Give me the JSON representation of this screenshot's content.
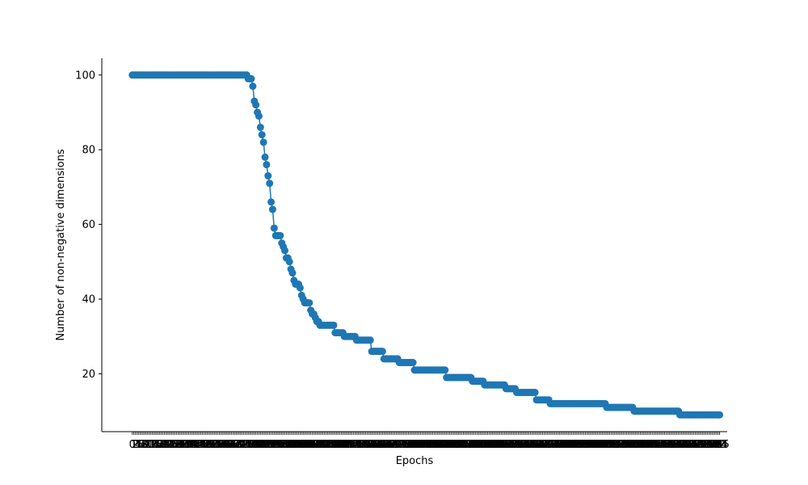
{
  "chart_data": {
    "type": "line",
    "title": "",
    "xlabel": "Epochs",
    "ylabel": "Number of non-negative dimensions",
    "ylim": [
      4.5,
      104.5
    ],
    "yticks": [
      20,
      40,
      60,
      80,
      100
    ],
    "xlim": [
      -20,
      390
    ],
    "grid": false,
    "legend": "none",
    "marker": "circle",
    "color": "#1f77b4",
    "series": [
      {
        "segments": [
          {
            "from": 0,
            "to": 75,
            "value": 100
          },
          {
            "from": 76,
            "to": 78,
            "value": 99
          },
          {
            "from": 79,
            "to": 79,
            "value": 97
          },
          {
            "from": 80,
            "to": 80,
            "value": 93
          },
          {
            "from": 81,
            "to": 81,
            "value": 92
          },
          {
            "from": 82,
            "to": 82,
            "value": 90
          },
          {
            "from": 83,
            "to": 83,
            "value": 89
          },
          {
            "from": 84,
            "to": 84,
            "value": 86
          },
          {
            "from": 85,
            "to": 85,
            "value": 84
          },
          {
            "from": 86,
            "to": 86,
            "value": 82
          },
          {
            "from": 87,
            "to": 87,
            "value": 78
          },
          {
            "from": 88,
            "to": 88,
            "value": 76
          },
          {
            "from": 89,
            "to": 89,
            "value": 73
          },
          {
            "from": 90,
            "to": 90,
            "value": 71
          },
          {
            "from": 91,
            "to": 91,
            "value": 66
          },
          {
            "from": 92,
            "to": 92,
            "value": 64
          },
          {
            "from": 93,
            "to": 93,
            "value": 59
          },
          {
            "from": 94,
            "to": 97,
            "value": 57
          },
          {
            "from": 98,
            "to": 98,
            "value": 55
          },
          {
            "from": 99,
            "to": 99,
            "value": 54
          },
          {
            "from": 100,
            "to": 100,
            "value": 53
          },
          {
            "from": 101,
            "to": 102,
            "value": 51
          },
          {
            "from": 103,
            "to": 103,
            "value": 50
          },
          {
            "from": 104,
            "to": 104,
            "value": 48
          },
          {
            "from": 105,
            "to": 105,
            "value": 47
          },
          {
            "from": 106,
            "to": 106,
            "value": 45
          },
          {
            "from": 107,
            "to": 109,
            "value": 44
          },
          {
            "from": 110,
            "to": 110,
            "value": 43
          },
          {
            "from": 111,
            "to": 111,
            "value": 41
          },
          {
            "from": 112,
            "to": 112,
            "value": 40
          },
          {
            "from": 113,
            "to": 116,
            "value": 39
          },
          {
            "from": 117,
            "to": 117,
            "value": 37
          },
          {
            "from": 118,
            "to": 119,
            "value": 36
          },
          {
            "from": 120,
            "to": 120,
            "value": 35
          },
          {
            "from": 121,
            "to": 122,
            "value": 34
          },
          {
            "from": 123,
            "to": 132,
            "value": 33
          },
          {
            "from": 133,
            "to": 138,
            "value": 31
          },
          {
            "from": 139,
            "to": 146,
            "value": 30
          },
          {
            "from": 147,
            "to": 156,
            "value": 29
          },
          {
            "from": 157,
            "to": 164,
            "value": 26
          },
          {
            "from": 165,
            "to": 174,
            "value": 24
          },
          {
            "from": 175,
            "to": 184,
            "value": 23
          },
          {
            "from": 185,
            "to": 205,
            "value": 21
          },
          {
            "from": 206,
            "to": 222,
            "value": 19
          },
          {
            "from": 223,
            "to": 230,
            "value": 18
          },
          {
            "from": 231,
            "to": 244,
            "value": 17
          },
          {
            "from": 245,
            "to": 251,
            "value": 16
          },
          {
            "from": 252,
            "to": 264,
            "value": 15
          },
          {
            "from": 265,
            "to": 273,
            "value": 13
          },
          {
            "from": 274,
            "to": 310,
            "value": 12
          },
          {
            "from": 311,
            "to": 328,
            "value": 11
          },
          {
            "from": 329,
            "to": 358,
            "value": 10
          },
          {
            "from": 359,
            "to": 385,
            "value": 9
          }
        ]
      }
    ]
  }
}
